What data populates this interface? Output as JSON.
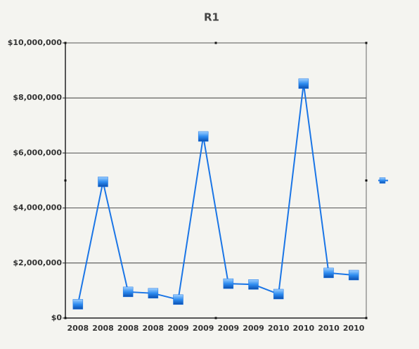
{
  "chart_data": {
    "type": "line",
    "title": "R1",
    "categories": [
      "2008",
      "2008",
      "2008",
      "2008",
      "2009",
      "2009",
      "2009",
      "2009",
      "2010",
      "2010",
      "2010",
      "2010"
    ],
    "series": [
      {
        "color": "#1a75e6",
        "values": [
          500000,
          4950000,
          950000,
          900000,
          670000,
          6600000,
          1250000,
          1220000,
          870000,
          8520000,
          1640000,
          1560000
        ]
      }
    ],
    "ylim": [
      0,
      10000000
    ],
    "yticks": [
      {
        "value": 0,
        "label": "$0"
      },
      {
        "value": 2000000,
        "label": "$2,000,000"
      },
      {
        "value": 4000000,
        "label": "$4,000,000"
      },
      {
        "value": 6000000,
        "label": "$6,000,000"
      },
      {
        "value": 8000000,
        "label": "$8,000,000"
      },
      {
        "value": 10000000,
        "label": "$10,000,000"
      }
    ],
    "grid": true,
    "legend": "right"
  }
}
